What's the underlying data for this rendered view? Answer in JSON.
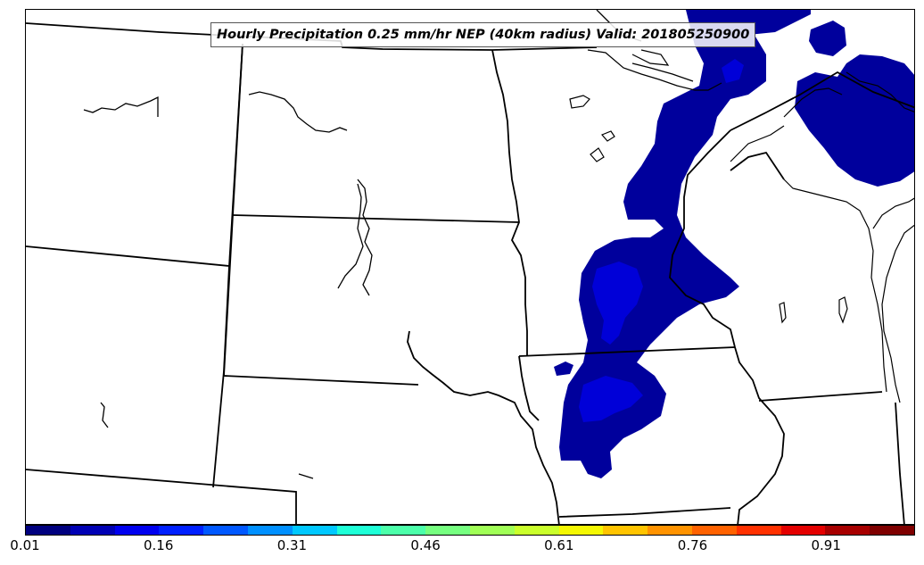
{
  "title": "Hourly Precipitation 0.25 mm/hr NEP (40km radius) Valid: 201805250900",
  "colorbar": {
    "ticks": [
      "0.01",
      "0.16",
      "0.31",
      "0.46",
      "0.61",
      "0.76",
      "0.91"
    ],
    "colors": [
      "#00007f",
      "#0000b4",
      "#0000ef",
      "#0020ff",
      "#0058ff",
      "#0090ff",
      "#00c8ff",
      "#1fffd7",
      "#4cffaa",
      "#76ff80",
      "#a0ff56",
      "#caff2c",
      "#f4f802",
      "#ffc400",
      "#ff9300",
      "#ff6200",
      "#ff3100",
      "#e40000",
      "#a80000",
      "#7f0000"
    ]
  },
  "legend_colors": {
    "light": "#00009c",
    "medium": "#0000d8"
  },
  "features": [
    "state-boundaries",
    "great-lakes-coastline",
    "rivers",
    "precipitation-probability-contours"
  ]
}
